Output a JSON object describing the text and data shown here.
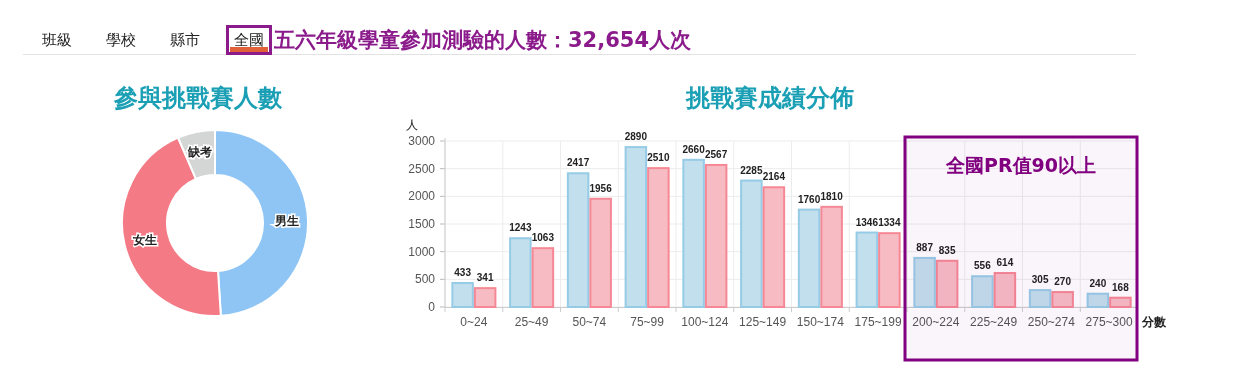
{
  "chart_data": [
    {
      "type": "other",
      "title": "五六年級學童參加測驗的人數：32,654人次",
      "annotations": [
        "班級",
        "學校",
        "縣市",
        "全國"
      ]
    },
    {
      "type": "donut",
      "title": "參與挑戰賽人數",
      "categories": [
        "男生",
        "女生",
        "缺考"
      ],
      "values": [
        49,
        44.5,
        6.5
      ],
      "colors": [
        "#8ec5f5",
        "#f47a85",
        "#d3d6d4"
      ]
    },
    {
      "type": "bar",
      "title": "挑戰賽成績分佈",
      "ylabel": "人",
      "xlabel": "分數",
      "categories": [
        "0~24",
        "25~49",
        "50~74",
        "75~99",
        "100~124",
        "125~149",
        "150~174",
        "175~199",
        "200~224",
        "225~249",
        "250~274",
        "275~300"
      ],
      "series": [
        {
          "color": "#c2dfee",
          "values": [
            433,
            1243,
            2417,
            2890,
            2660,
            2285,
            1760,
            1346,
            887,
            556,
            305,
            240
          ]
        },
        {
          "color": "#f7bcc3",
          "values": [
            341,
            1063,
            1956,
            2510,
            2567,
            2164,
            1810,
            1334,
            835,
            614,
            270,
            168
          ]
        }
      ],
      "ylim": [
        0,
        3000
      ],
      "yticks": [
        0,
        500,
        1000,
        1500,
        2000,
        2500,
        3000
      ],
      "grid": true,
      "data_labels": true,
      "bands": [
        {
          "axis": "x",
          "from": "200~224",
          "to": "275~300",
          "label": "全國PR值90以上",
          "color": "#800080"
        }
      ]
    }
  ]
}
